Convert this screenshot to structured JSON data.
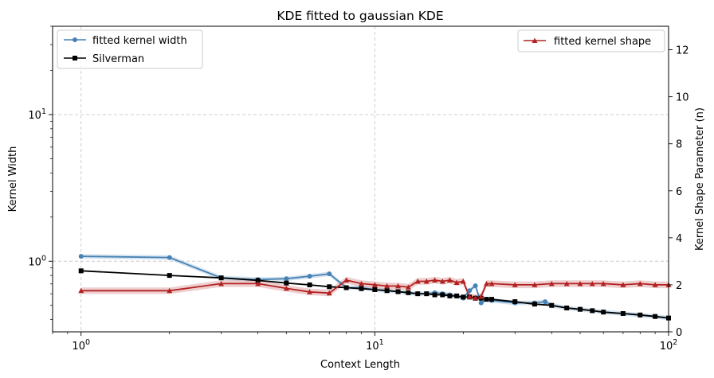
{
  "chart_data": {
    "type": "line",
    "title": "KDE fitted to gaussian KDE",
    "xlabel": "Context Length",
    "ylabel_left": "Kernel Width",
    "ylabel_right": "Kernel Shape Parameter (n)",
    "xscale": "log",
    "yscale_left": "log",
    "yscale_right": "linear",
    "xlim": [
      0.8,
      100
    ],
    "ylim_left": [
      0.33,
      40
    ],
    "ylim_right": [
      0,
      13
    ],
    "grid": true,
    "x_ticks": [
      {
        "value": 1,
        "base": "10",
        "exp": "0"
      },
      {
        "value": 10,
        "base": "10",
        "exp": "1"
      },
      {
        "value": 100,
        "base": "10",
        "exp": "2"
      }
    ],
    "y_left_ticks": [
      {
        "value": 1,
        "base": "10",
        "exp": "0"
      },
      {
        "value": 10,
        "base": "10",
        "exp": "1"
      }
    ],
    "y_right_ticks": [
      "0",
      "2",
      "4",
      "6",
      "8",
      "10",
      "12"
    ],
    "legend_left": {
      "placement": "upper left",
      "entries": [
        "fitted kernel width",
        "Silverman"
      ]
    },
    "legend_right": {
      "placement": "upper right",
      "entries": [
        "fitted kernel shape"
      ]
    },
    "colors": {
      "width": "#4682b4",
      "silverman": "#000000",
      "shape": "#b22222"
    },
    "series": [
      {
        "name": "fitted kernel width",
        "axis": "left",
        "marker": "circle",
        "x": [
          1,
          2,
          3,
          4,
          5,
          6,
          7,
          8,
          9,
          10,
          11,
          12,
          13,
          14,
          15,
          16,
          17,
          18,
          19,
          20,
          21,
          22,
          23,
          24,
          25,
          30,
          35,
          38,
          40,
          45,
          50,
          55,
          60,
          70,
          80,
          90,
          100
        ],
        "y": [
          1.08,
          1.06,
          0.77,
          0.75,
          0.76,
          0.79,
          0.82,
          0.66,
          0.66,
          0.64,
          0.63,
          0.62,
          0.61,
          0.6,
          0.6,
          0.61,
          0.6,
          0.59,
          0.58,
          0.56,
          0.63,
          0.68,
          0.52,
          0.55,
          0.54,
          0.52,
          0.52,
          0.53,
          0.5,
          0.48,
          0.47,
          0.46,
          0.45,
          0.44,
          0.43,
          0.42,
          0.41
        ]
      },
      {
        "name": "Silverman",
        "axis": "left",
        "marker": "square",
        "x": [
          1,
          2,
          3,
          4,
          5,
          6,
          7,
          8,
          9,
          10,
          11,
          12,
          13,
          14,
          15,
          16,
          17,
          18,
          19,
          20,
          21,
          22,
          23,
          24,
          25,
          30,
          35,
          40,
          45,
          50,
          55,
          60,
          70,
          80,
          90,
          100
        ],
        "y": [
          0.86,
          0.8,
          0.77,
          0.74,
          0.71,
          0.69,
          0.67,
          0.66,
          0.65,
          0.64,
          0.63,
          0.62,
          0.61,
          0.6,
          0.6,
          0.59,
          0.59,
          0.58,
          0.58,
          0.57,
          0.57,
          0.56,
          0.56,
          0.55,
          0.55,
          0.53,
          0.51,
          0.5,
          0.48,
          0.47,
          0.46,
          0.45,
          0.44,
          0.43,
          0.42,
          0.41
        ]
      },
      {
        "name": "fitted kernel shape",
        "axis": "right",
        "marker": "triangle",
        "x": [
          1,
          2,
          3,
          4,
          5,
          6,
          7,
          8,
          9,
          10,
          11,
          12,
          13,
          14,
          15,
          16,
          17,
          18,
          19,
          20,
          21,
          22,
          23,
          24,
          25,
          30,
          35,
          40,
          45,
          50,
          55,
          60,
          70,
          80,
          90,
          100
        ],
        "y": [
          1.75,
          1.75,
          2.05,
          2.05,
          1.85,
          1.7,
          1.65,
          2.2,
          2.05,
          2.0,
          1.95,
          1.95,
          1.9,
          2.15,
          2.15,
          2.2,
          2.15,
          2.2,
          2.1,
          2.15,
          1.5,
          1.45,
          1.5,
          2.05,
          2.05,
          2.0,
          2.0,
          2.05,
          2.05,
          2.05,
          2.05,
          2.05,
          2.0,
          2.05,
          2.0,
          2.0
        ]
      }
    ]
  }
}
